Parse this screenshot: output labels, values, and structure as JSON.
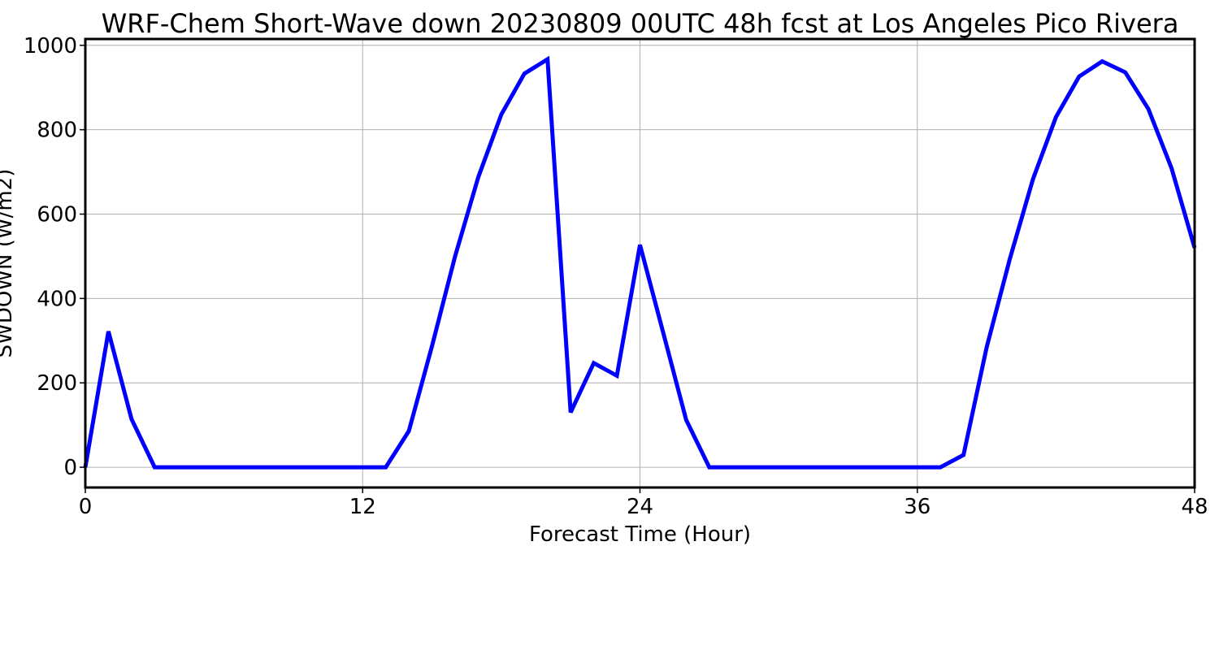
{
  "chart_data": {
    "type": "line",
    "title": "WRF-Chem Short-Wave down  20230809 00UTC 48h fcst at Los Angeles Pico Rivera",
    "xlabel": "Forecast Time (Hour)",
    "ylabel": "SWDOWN  (W/m2)",
    "xlim": [
      0,
      48
    ],
    "ylim": [
      -48,
      1015
    ],
    "xticks": [
      0,
      12,
      24,
      36,
      48
    ],
    "yticks": [
      0,
      200,
      400,
      600,
      800,
      1000
    ],
    "grid": true,
    "series": [
      {
        "color": "#0000ff",
        "x": [
          0,
          1,
          2,
          3,
          4,
          5,
          6,
          7,
          8,
          9,
          10,
          11,
          12,
          13,
          14,
          15,
          16,
          17,
          18,
          19,
          20,
          21,
          22,
          23,
          24,
          25,
          26,
          27,
          28,
          29,
          30,
          31,
          32,
          33,
          34,
          35,
          36,
          37,
          38,
          39,
          40,
          41,
          42,
          43,
          44,
          45,
          46,
          47,
          48
        ],
        "y": [
          0,
          322,
          114,
          0,
          0,
          0,
          0,
          0,
          0,
          0,
          0,
          0,
          0,
          0,
          86,
          287,
          500,
          687,
          836,
          933,
          967,
          130,
          247,
          217,
          527,
          320,
          112,
          0,
          0,
          0,
          0,
          0,
          0,
          0,
          0,
          0,
          0,
          0,
          29,
          284,
          493,
          682,
          830,
          926,
          962,
          936,
          849,
          709,
          520
        ]
      }
    ]
  }
}
